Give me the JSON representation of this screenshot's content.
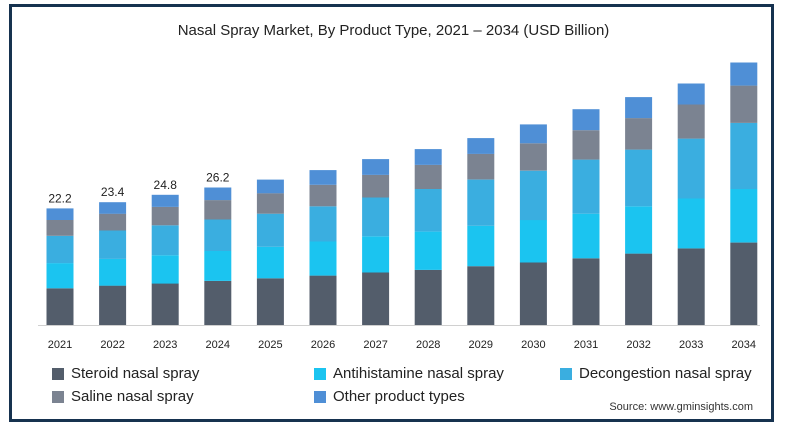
{
  "chart_data": {
    "type": "bar",
    "stacked": true,
    "title": "Nasal Spray Market, By Product Type, 2021 – 2034 (USD Billion)",
    "xlabel": "",
    "ylabel": "",
    "categories": [
      "2021",
      "2022",
      "2023",
      "2024",
      "2025",
      "2026",
      "2027",
      "2028",
      "2029",
      "2030",
      "2031",
      "2032",
      "2033",
      "2034"
    ],
    "totals_labels": [
      "22.2",
      "23.4",
      "24.8",
      "26.2",
      "",
      "",
      "",
      "",
      "",
      "",
      "",
      "",
      "",
      ""
    ],
    "series": [
      {
        "name": "Steroid nasal spray",
        "color": "#535d6b",
        "values": [
          7.0,
          7.5,
          7.9,
          8.4,
          8.9,
          9.4,
          10.0,
          10.5,
          11.2,
          11.9,
          12.7,
          13.6,
          14.6,
          15.7
        ]
      },
      {
        "name": "Antihistamine nasal spray",
        "color": "#1bc4f0",
        "values": [
          4.8,
          5.1,
          5.4,
          5.7,
          6.0,
          6.5,
          6.9,
          7.3,
          7.7,
          8.1,
          8.5,
          9.0,
          9.5,
          10.2
        ]
      },
      {
        "name": "Decongestion nasal spray",
        "color": "#3aaee0",
        "values": [
          5.2,
          5.4,
          5.7,
          6.0,
          6.3,
          6.7,
          7.4,
          8.1,
          8.8,
          9.4,
          10.3,
          10.8,
          11.4,
          12.6
        ]
      },
      {
        "name": "Saline nasal spray",
        "color": "#7b8391",
        "values": [
          3.0,
          3.2,
          3.5,
          3.7,
          3.9,
          4.1,
          4.3,
          4.6,
          4.9,
          5.2,
          5.6,
          6.0,
          6.5,
          7.1
        ]
      },
      {
        "name": "Other product types",
        "color": "#4f8fd6",
        "values": [
          2.2,
          2.2,
          2.3,
          2.4,
          2.6,
          2.8,
          3.0,
          3.0,
          3.0,
          3.6,
          4.0,
          4.0,
          4.0,
          4.4
        ]
      }
    ],
    "ylim": [
      0,
      52
    ],
    "grid": false,
    "legend_position": "bottom"
  },
  "source": "Source: www.gminsights.com"
}
